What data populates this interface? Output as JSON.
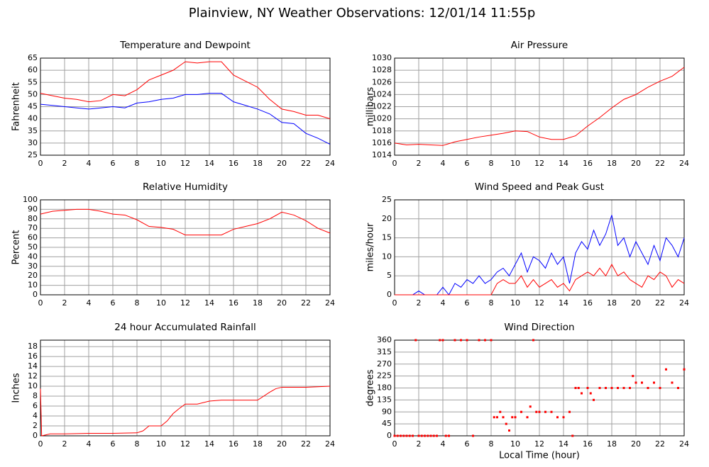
{
  "title": "Plainview, NY Weather Observations: 12/01/14 11:55p",
  "chart_data": [
    {
      "type": "line",
      "title": "Temperature and Dewpoint",
      "ylabel": "Fahrenheit",
      "x": [
        0,
        1,
        2,
        3,
        4,
        5,
        6,
        7,
        8,
        9,
        10,
        11,
        12,
        13,
        14,
        15,
        16,
        17,
        18,
        19,
        20,
        21,
        22,
        23,
        24
      ],
      "series": [
        {
          "color": "#ff0000",
          "values": [
            50.5,
            49.5,
            48.5,
            48,
            47,
            47.5,
            50,
            49.5,
            52,
            56,
            58,
            60,
            63.5,
            63,
            63.5,
            63.5,
            58,
            55.5,
            53,
            48,
            44,
            43,
            41.5,
            41.5,
            40
          ]
        },
        {
          "color": "#0000ff",
          "values": [
            46,
            45.5,
            45,
            44.5,
            44,
            44.5,
            45,
            44.5,
            46.5,
            47,
            48,
            48.5,
            50,
            50,
            50.5,
            50.5,
            47,
            45.5,
            44,
            42,
            38.5,
            38,
            34,
            32,
            29.5
          ]
        }
      ],
      "xlim": [
        0,
        24
      ],
      "xticks": [
        0,
        2,
        4,
        6,
        8,
        10,
        12,
        14,
        16,
        18,
        20,
        22,
        24
      ],
      "ylim": [
        25,
        65
      ],
      "yticks": [
        25,
        30,
        35,
        40,
        45,
        50,
        55,
        60,
        65
      ],
      "grid": true
    },
    {
      "type": "line",
      "title": "Air Pressure",
      "ylabel": "millibars",
      "x": [
        0,
        1,
        2,
        3,
        4,
        5,
        6,
        7,
        8,
        9,
        10,
        11,
        12,
        13,
        14,
        15,
        16,
        17,
        18,
        19,
        20,
        21,
        22,
        23,
        24
      ],
      "series": [
        {
          "color": "#ff0000",
          "values": [
            1016,
            1015.7,
            1015.8,
            1015.7,
            1015.6,
            1016.2,
            1016.6,
            1017,
            1017.3,
            1017.6,
            1018,
            1017.9,
            1017,
            1016.6,
            1016.6,
            1017.2,
            1018.8,
            1020.2,
            1021.8,
            1023.2,
            1024,
            1025.2,
            1026.2,
            1027,
            1028.5
          ]
        }
      ],
      "xlim": [
        0,
        24
      ],
      "xticks": [
        0,
        2,
        4,
        6,
        8,
        10,
        12,
        14,
        16,
        18,
        20,
        22,
        24
      ],
      "ylim": [
        1014,
        1030
      ],
      "yticks": [
        1014,
        1016,
        1018,
        1020,
        1022,
        1024,
        1026,
        1028,
        1030
      ],
      "grid": true
    },
    {
      "type": "line",
      "title": "Relative Humidity",
      "ylabel": "Percent",
      "x": [
        0,
        1,
        2,
        3,
        4,
        5,
        6,
        7,
        8,
        9,
        10,
        11,
        12,
        13,
        14,
        15,
        16,
        17,
        18,
        19,
        20,
        21,
        22,
        23,
        24
      ],
      "series": [
        {
          "color": "#ff0000",
          "values": [
            85,
            88,
            89,
            90,
            90,
            88,
            85,
            84,
            79,
            72,
            71,
            69,
            63,
            63,
            63,
            63,
            69,
            72,
            75,
            80,
            87,
            84,
            78,
            70,
            65
          ]
        }
      ],
      "xlim": [
        0,
        24
      ],
      "xticks": [
        0,
        2,
        4,
        6,
        8,
        10,
        12,
        14,
        16,
        18,
        20,
        22,
        24
      ],
      "ylim": [
        0,
        100
      ],
      "yticks": [
        0,
        10,
        20,
        30,
        40,
        50,
        60,
        70,
        80,
        90,
        100
      ],
      "grid": true
    },
    {
      "type": "line",
      "title": "Wind Speed and Peak Gust",
      "ylabel": "miles/hour",
      "x": [
        0,
        0.5,
        1,
        1.5,
        2,
        2.5,
        3,
        3.5,
        4,
        4.5,
        5,
        5.5,
        6,
        6.5,
        7,
        7.5,
        8,
        8.5,
        9,
        9.5,
        10,
        10.5,
        11,
        11.5,
        12,
        12.5,
        13,
        13.5,
        14,
        14.5,
        15,
        15.5,
        16,
        16.5,
        17,
        17.5,
        18,
        18.5,
        19,
        19.5,
        20,
        20.5,
        21,
        21.5,
        22,
        22.5,
        23,
        23.5,
        24
      ],
      "series": [
        {
          "color": "#0000ff",
          "values": [
            0,
            0,
            0,
            0,
            1,
            0,
            0,
            0,
            2,
            0,
            3,
            2,
            4,
            3,
            5,
            3,
            4,
            6,
            7,
            5,
            8,
            11,
            6,
            10,
            9,
            7,
            11,
            8,
            10,
            3,
            11,
            14,
            12,
            17,
            13,
            16,
            21,
            13,
            15,
            10,
            14,
            11,
            8,
            13,
            9,
            15,
            13,
            10,
            15
          ]
        },
        {
          "color": "#ff0000",
          "values": [
            0,
            0,
            0,
            0,
            0,
            0,
            0,
            0,
            0,
            0,
            0,
            0,
            0,
            0,
            0,
            0,
            0,
            3,
            4,
            3,
            3,
            5,
            2,
            4,
            2,
            3,
            4,
            2,
            3,
            1,
            4,
            5,
            6,
            5,
            7,
            5,
            8,
            5,
            6,
            4,
            3,
            2,
            5,
            4,
            6,
            5,
            2,
            4,
            3
          ]
        }
      ],
      "xlim": [
        0,
        24
      ],
      "xticks": [
        0,
        2,
        4,
        6,
        8,
        10,
        12,
        14,
        16,
        18,
        20,
        22,
        24
      ],
      "ylim": [
        0,
        25
      ],
      "yticks": [
        0,
        5,
        10,
        15,
        20,
        25
      ],
      "grid": true
    },
    {
      "type": "line",
      "title": "24 hour Accumulated Rainfall",
      "ylabel": "Inches",
      "x": [
        0,
        0.1,
        0.8,
        2,
        4,
        6,
        8,
        8.5,
        9,
        10,
        10.5,
        11,
        11.5,
        12,
        13,
        14,
        15,
        16,
        17,
        18,
        19,
        19.5,
        20,
        21,
        22,
        23,
        24
      ],
      "series": [
        {
          "color": "#ff0000",
          "values": [
            9.5,
            0,
            0.4,
            0.4,
            0.5,
            0.5,
            0.6,
            1.0,
            2.0,
            2.0,
            3.0,
            4.5,
            5.5,
            6.4,
            6.4,
            7.0,
            7.2,
            7.2,
            7.2,
            7.2,
            8.8,
            9.5,
            9.8,
            9.8,
            9.8,
            9.9,
            10
          ]
        }
      ],
      "xlim": [
        0,
        24
      ],
      "xticks": [
        0,
        2,
        4,
        6,
        8,
        10,
        12,
        14,
        16,
        18,
        20,
        22,
        24
      ],
      "ylim": [
        0,
        19.3
      ],
      "yticks": [
        0,
        2,
        4,
        6,
        8,
        10,
        12,
        14,
        16,
        18
      ],
      "grid": true
    },
    {
      "type": "scatter",
      "title": "Wind Direction",
      "ylabel": "degrees",
      "xlabel": "Local Time (hour)",
      "x": [
        0,
        0.25,
        0.5,
        0.75,
        1,
        1.25,
        1.5,
        1.75,
        2,
        2.25,
        2.5,
        2.75,
        3,
        3.25,
        3.5,
        3.75,
        4,
        4.25,
        4.5,
        5,
        5.5,
        6,
        6.5,
        7,
        7.5,
        8,
        8.25,
        8.5,
        8.75,
        9,
        9.25,
        9.5,
        9.75,
        10,
        10.5,
        11,
        11.25,
        11.5,
        11.75,
        12,
        12.5,
        13,
        13.5,
        14,
        14.5,
        14.75,
        15,
        15.25,
        15.5,
        16,
        16.25,
        16.5,
        17,
        17.5,
        18,
        18.5,
        19,
        19.5,
        19.75,
        20,
        20.5,
        21,
        21.5,
        22,
        22.5,
        23,
        23.5,
        24
      ],
      "series": [
        {
          "color": "#ff0000",
          "values": [
            0,
            0,
            0,
            0,
            0,
            0,
            0,
            360,
            0,
            0,
            0,
            0,
            0,
            0,
            0,
            360,
            360,
            0,
            0,
            360,
            360,
            360,
            0,
            360,
            360,
            360,
            70,
            70,
            90,
            70,
            45,
            20,
            70,
            70,
            90,
            70,
            110,
            360,
            90,
            90,
            90,
            90,
            70,
            70,
            90,
            0,
            180,
            180,
            160,
            180,
            160,
            135,
            180,
            180,
            180,
            180,
            180,
            180,
            225,
            200,
            200,
            180,
            200,
            180,
            250,
            200,
            180,
            250
          ]
        }
      ],
      "xlim": [
        0,
        24
      ],
      "xticks": [
        0,
        2,
        4,
        6,
        8,
        10,
        12,
        14,
        16,
        18,
        20,
        22,
        24
      ],
      "ylim": [
        0,
        360
      ],
      "yticks": [
        0,
        45,
        90,
        135,
        180,
        225,
        270,
        315,
        360
      ],
      "grid": true
    }
  ]
}
